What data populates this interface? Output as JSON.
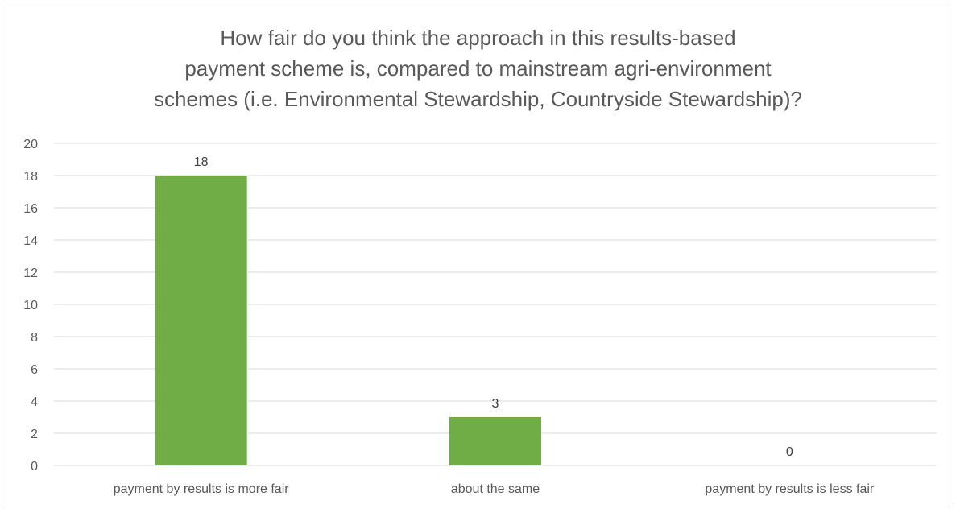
{
  "chart_data": {
    "type": "bar",
    "title_lines": [
      "How fair do you think the approach in this results-based",
      "payment scheme is, compared to mainstream agri-environment",
      "schemes (i.e. Environmental Stewardship, Countryside Stewardship)?"
    ],
    "categories": [
      "payment by results is more fair",
      "about the same",
      "payment by results is less fair"
    ],
    "values": [
      18,
      3,
      0
    ],
    "data_labels": [
      "18",
      "3",
      "0"
    ],
    "ylim": [
      0,
      20
    ],
    "y_ticks": [
      0,
      2,
      4,
      6,
      8,
      10,
      12,
      14,
      16,
      18,
      20
    ],
    "xlabel": "",
    "ylabel": "",
    "grid": true,
    "legend": "none",
    "bar_color": "#70ad47",
    "grid_color": "#d9d9d9",
    "text_color": "#595959"
  }
}
